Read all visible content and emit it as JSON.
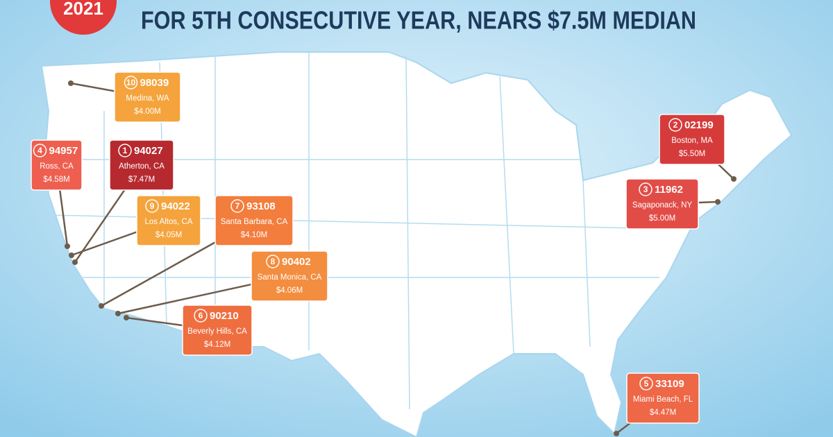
{
  "badge": "2021",
  "title": "FOR 5TH CONSECUTIVE YEAR, NEARS $7.5M MEDIAN",
  "labels": [
    {
      "rank": "10",
      "zip": "98039",
      "place": "Medina, WA",
      "price": "$4.00M",
      "color": "#f5a33c"
    },
    {
      "rank": "4",
      "zip": "94957",
      "place": "Ross, CA",
      "price": "$4.58M",
      "color": "#ee5f4f"
    },
    {
      "rank": "1",
      "zip": "94027",
      "place": "Atherton, CA",
      "price": "$7.47M",
      "color": "#b62a2f"
    },
    {
      "rank": "9",
      "zip": "94022",
      "place": "Los Altos, CA",
      "price": "$4.05M",
      "color": "#f5a33c"
    },
    {
      "rank": "7",
      "zip": "93108",
      "place": "Santa Barbara, CA",
      "price": "$4.10M",
      "color": "#f27d3d"
    },
    {
      "rank": "8",
      "zip": "90402",
      "place": "Santa Monica, CA",
      "price": "$4.06M",
      "color": "#f38d3f"
    },
    {
      "rank": "6",
      "zip": "90210",
      "place": "Beverly Hills, CA",
      "price": "$4.12M",
      "color": "#ef6e40"
    },
    {
      "rank": "2",
      "zip": "02199",
      "place": "Boston, MA",
      "price": "$5.50M",
      "color": "#d63b3b"
    },
    {
      "rank": "3",
      "zip": "11962",
      "place": "Sagaponack, NY",
      "price": "$5.00M",
      "color": "#e24c47"
    },
    {
      "rank": "5",
      "zip": "33109",
      "place": "Miami Beach, FL",
      "price": "$4.47M",
      "color": "#ee6747"
    }
  ]
}
